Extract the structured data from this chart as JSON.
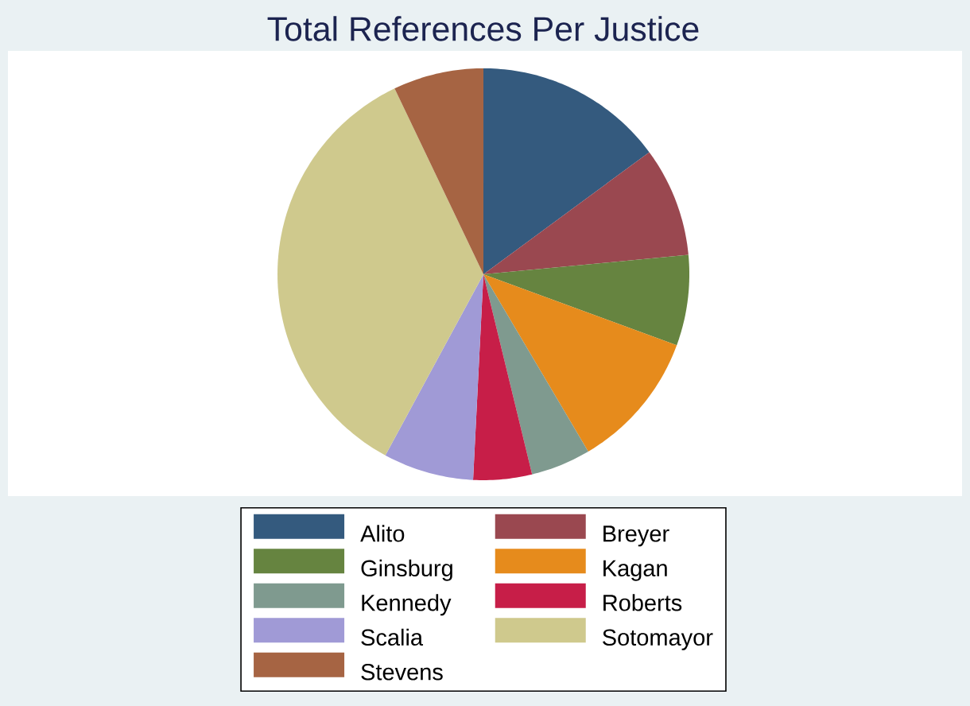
{
  "chart_data": {
    "type": "pie",
    "title": "Total References Per Justice",
    "categories": [
      "Alito",
      "Breyer",
      "Ginsburg",
      "Kagan",
      "Kennedy",
      "Roberts",
      "Scalia",
      "Sotomayor",
      "Stevens"
    ],
    "values": [
      14.9,
      8.6,
      7.1,
      10.9,
      4.7,
      4.6,
      7.1,
      35.0,
      7.1
    ],
    "colors": [
      "#345a7e",
      "#9a4850",
      "#668440",
      "#e68b1c",
      "#7f9a8f",
      "#c71e48",
      "#a09ad6",
      "#cfc98d",
      "#a66443"
    ],
    "legend": "bottom"
  }
}
